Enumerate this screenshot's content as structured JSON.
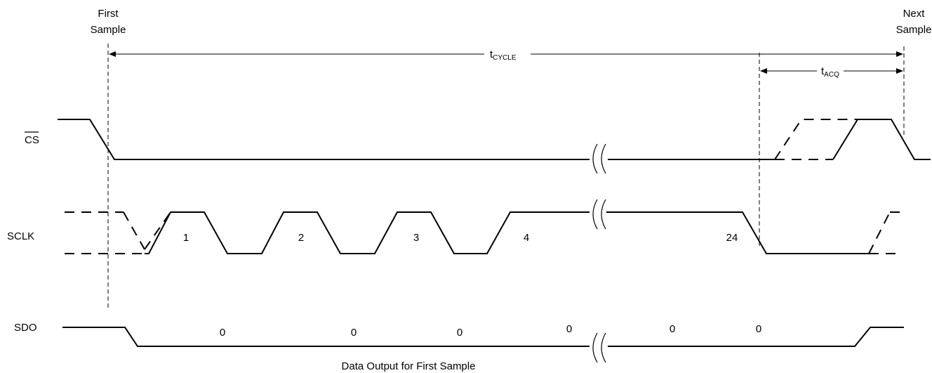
{
  "markers": {
    "first_sample": [
      "First",
      "Sample"
    ],
    "next_sample": [
      "Next",
      "Sample"
    ]
  },
  "dimensions": {
    "cycle": {
      "main": "t",
      "sub": "CYCLE"
    },
    "acq": {
      "main": "t",
      "sub": "ACQ"
    }
  },
  "signals": {
    "cs": "CS",
    "sclk": "SCLK",
    "sdo": "SDO"
  },
  "clock_labels": [
    "1",
    "2",
    "3",
    "4",
    "24"
  ],
  "data_bits": [
    "0",
    "0",
    "0",
    "0",
    "0",
    "0"
  ],
  "sdo_caption": "Data Output for First Sample"
}
